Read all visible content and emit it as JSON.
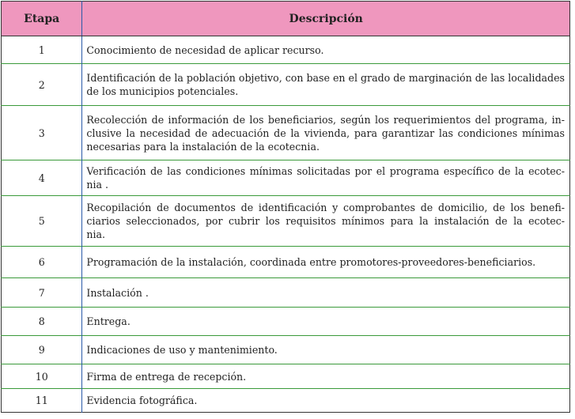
{
  "table": {
    "headers": [
      "Etapa",
      "Descripción"
    ],
    "rows": [
      {
        "etapa": "1",
        "lines": [
          "Conocimiento de necesidad de aplicar recurso."
        ]
      },
      {
        "etapa": "2",
        "lines": [
          "Identificación de la población objetivo, con base en el grado de marginación de las localidades",
          "de los municipios potenciales."
        ]
      },
      {
        "etapa": "3",
        "lines": [
          "Recolección de información de los beneficiarios, según los requerimientos del programa, in-",
          "clusive la necesidad de adecuación de la vivienda, para garantizar las condiciones mínimas",
          "necesarias para la instalación de la ecotecnia."
        ]
      },
      {
        "etapa": "4",
        "lines": [
          "Verificación de las condiciones mínimas solicitadas por el programa específico de la ecotec-",
          "nia ."
        ]
      },
      {
        "etapa": "5",
        "lines": [
          "Recopilación de documentos de identificación y comprobantes de domicilio, de los benefi-",
          "ciarios seleccionados, por cubrir los requisitos mínimos para la instalación de la ecotec-",
          "nia."
        ]
      },
      {
        "etapa": "6",
        "lines": [
          "Programación de la instalación, coordinada entre promotores-proveedores-beneficiarios."
        ]
      },
      {
        "etapa": "7",
        "lines": [
          "Instalación ."
        ]
      },
      {
        "etapa": "8",
        "lines": [
          "Entrega."
        ]
      },
      {
        "etapa": "9",
        "lines": [
          "Indicaciones  de uso y mantenimiento."
        ]
      },
      {
        "etapa": "10",
        "lines": [
          "Firma de entrega de recepción."
        ]
      },
      {
        "etapa": "11",
        "lines": [
          "Evidencia fotográfica."
        ]
      }
    ]
  },
  "colors": {
    "header_bg": "#ef97be",
    "row_divider": "#3a9a3a",
    "column_divider": "#2a5aa8"
  }
}
